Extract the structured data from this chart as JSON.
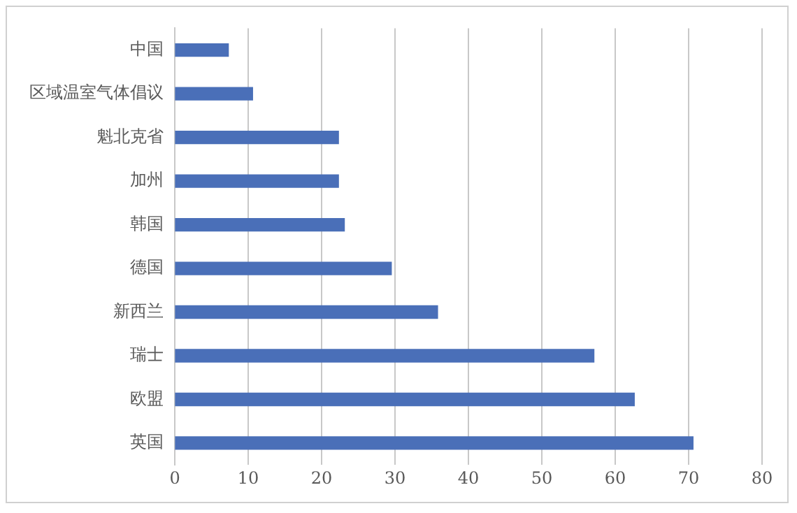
{
  "chart_data": {
    "type": "bar",
    "orientation": "horizontal",
    "categories": [
      "中国",
      "区域温室气体倡议",
      "魁北克省",
      "加州",
      "韩国",
      "德国",
      "新西兰",
      "瑞士",
      "欧盟",
      "英国"
    ],
    "values": [
      7.3,
      10.6,
      22.3,
      22.3,
      23.1,
      29.5,
      35.8,
      57.1,
      62.6,
      70.6
    ],
    "color": "#4a6fb8",
    "xlim": [
      0,
      80
    ],
    "xticks": [
      0,
      10,
      20,
      30,
      40,
      50,
      60,
      70,
      80
    ],
    "grid": "x",
    "legend": false
  }
}
